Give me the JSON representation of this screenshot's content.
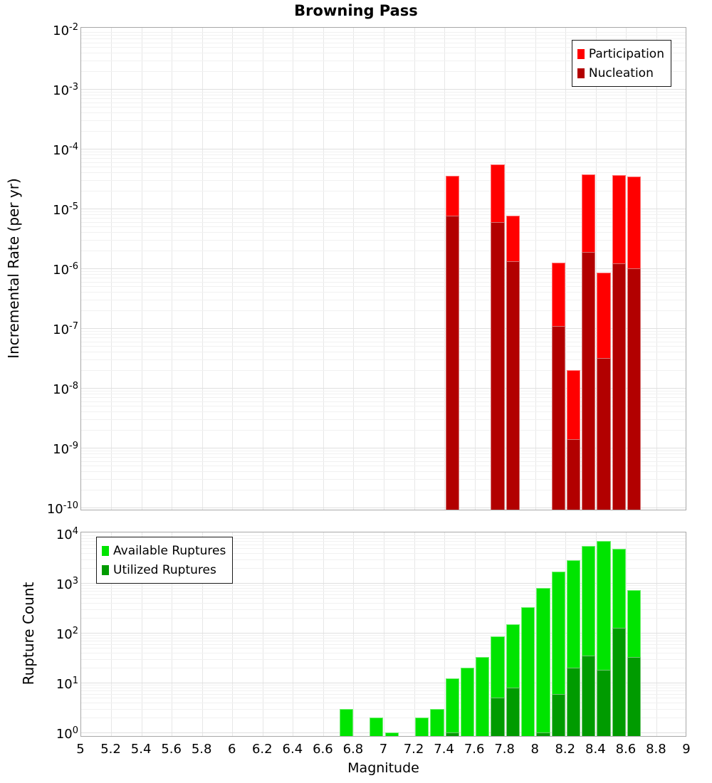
{
  "title": "Browning Pass",
  "x_axis": {
    "label": "Magnitude",
    "tick_labels": [
      "5",
      "5.2",
      "5.4",
      "5.6",
      "5.8",
      "6",
      "6.2",
      "6.4",
      "6.6",
      "6.8",
      "7",
      "7.2",
      "7.4",
      "7.6",
      "7.8",
      "8",
      "8.2",
      "8.4",
      "8.6",
      "8.8",
      "9"
    ],
    "range": [
      5,
      9
    ]
  },
  "chart_data": [
    {
      "type": "bar",
      "panel": "top",
      "title": "Browning Pass",
      "xlabel": "Magnitude",
      "ylabel": "Incremental Rate (per yr)",
      "y_scale": "log",
      "ylim": [
        1e-10,
        0.01
      ],
      "xlim": [
        5,
        9
      ],
      "bin_width": 0.1,
      "grid": true,
      "legend_position": "top-right",
      "y_tick_exponents": [
        -2,
        -3,
        -4,
        -5,
        -6,
        -7,
        -8,
        -9,
        -10
      ],
      "series": [
        {
          "name": "Participation",
          "field": "participation",
          "color": "#ff0000"
        },
        {
          "name": "Nucleation",
          "field": "nucleation",
          "color": "#b20000"
        }
      ],
      "bars": [
        {
          "bin": [
            7.4,
            7.5
          ],
          "participation": 3.5e-05,
          "nucleation": 7.5e-06
        },
        {
          "bin": [
            7.7,
            7.8
          ],
          "participation": 5.5e-05,
          "nucleation": 6e-06
        },
        {
          "bin": [
            7.8,
            7.9
          ],
          "participation": 7.6e-06,
          "nucleation": 1.3e-06
        },
        {
          "bin": [
            8.1,
            8.2
          ],
          "participation": 1.25e-06,
          "nucleation": 1.1e-07
        },
        {
          "bin": [
            8.2,
            8.3
          ],
          "participation": 2e-08,
          "nucleation": 1.4e-09
        },
        {
          "bin": [
            8.3,
            8.4
          ],
          "participation": 3.7e-05,
          "nucleation": 1.9e-06
        },
        {
          "bin": [
            8.4,
            8.5
          ],
          "participation": 8.5e-07,
          "nucleation": 3.2e-08
        },
        {
          "bin": [
            8.5,
            8.6
          ],
          "participation": 3.6e-05,
          "nucleation": 1.2e-06
        },
        {
          "bin": [
            8.6,
            8.7
          ],
          "participation": 3.4e-05,
          "nucleation": 1e-06
        }
      ]
    },
    {
      "type": "bar",
      "panel": "bottom",
      "xlabel": "Magnitude",
      "ylabel": "Rupture Count",
      "y_scale": "log",
      "ylim": [
        1,
        10000
      ],
      "xlim": [
        5,
        9
      ],
      "bin_width": 0.1,
      "grid": true,
      "legend_position": "top-left",
      "y_tick_exponents": [
        4,
        3,
        2,
        1,
        0
      ],
      "x_tick_labels": [
        "5",
        "5.2",
        "5.4",
        "5.6",
        "5.8",
        "6",
        "6.2",
        "6.4",
        "6.6",
        "6.8",
        "7",
        "7.2",
        "7.4",
        "7.6",
        "7.8",
        "8",
        "8.2",
        "8.4",
        "8.6",
        "8.8",
        "9"
      ],
      "series": [
        {
          "name": "Available Ruptures",
          "field": "available",
          "color": "#00e400"
        },
        {
          "name": "Utilized Ruptures",
          "field": "utilized",
          "color": "#009b00"
        }
      ],
      "bars": [
        {
          "bin": [
            6.7,
            6.8
          ],
          "available": 3,
          "utilized": 0
        },
        {
          "bin": [
            6.9,
            7.0
          ],
          "available": 2,
          "utilized": 0
        },
        {
          "bin": [
            7.0,
            7.1
          ],
          "available": 1,
          "utilized": 0
        },
        {
          "bin": [
            7.2,
            7.3
          ],
          "available": 2,
          "utilized": 0
        },
        {
          "bin": [
            7.3,
            7.4
          ],
          "available": 3,
          "utilized": 0
        },
        {
          "bin": [
            7.4,
            7.5
          ],
          "available": 12,
          "utilized": 1
        },
        {
          "bin": [
            7.5,
            7.6
          ],
          "available": 20,
          "utilized": 0
        },
        {
          "bin": [
            7.6,
            7.7
          ],
          "available": 33,
          "utilized": 0
        },
        {
          "bin": [
            7.7,
            7.8
          ],
          "available": 85,
          "utilized": 5
        },
        {
          "bin": [
            7.8,
            7.9
          ],
          "available": 150,
          "utilized": 8
        },
        {
          "bin": [
            7.9,
            8.0
          ],
          "available": 330,
          "utilized": 0
        },
        {
          "bin": [
            8.0,
            8.1
          ],
          "available": 790,
          "utilized": 1
        },
        {
          "bin": [
            8.1,
            8.2
          ],
          "available": 1700,
          "utilized": 6
        },
        {
          "bin": [
            8.2,
            8.3
          ],
          "available": 2900,
          "utilized": 20
        },
        {
          "bin": [
            8.3,
            8.4
          ],
          "available": 5500,
          "utilized": 35
        },
        {
          "bin": [
            8.4,
            8.5
          ],
          "available": 7000,
          "utilized": 18
        },
        {
          "bin": [
            8.5,
            8.6
          ],
          "available": 4900,
          "utilized": 125
        },
        {
          "bin": [
            8.6,
            8.7
          ],
          "available": 720,
          "utilized": 33
        }
      ]
    }
  ]
}
